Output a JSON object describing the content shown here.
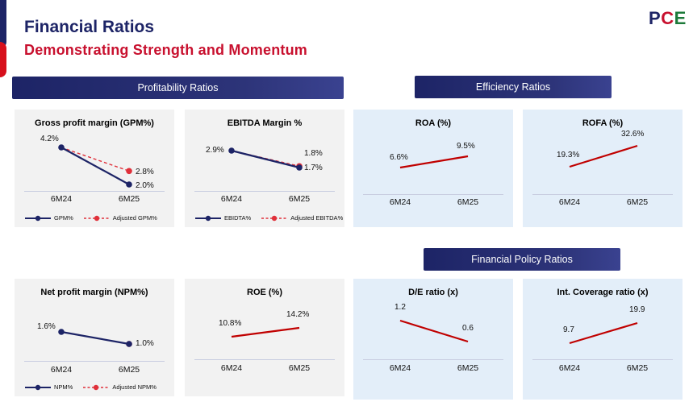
{
  "header": {
    "title": "Financial Ratios",
    "subtitle": "Demonstrating Strength and Momentum",
    "logo": {
      "p": "P",
      "c": "C",
      "e": "E"
    }
  },
  "sections": {
    "profitability": "Profitability Ratios",
    "efficiency": "Efficiency Ratios",
    "financial_policy": "Financial Policy Ratios"
  },
  "colors": {
    "navy": "#1d2466",
    "red": "#c8102e",
    "dashed_red": "#e0303a",
    "solid_red": "#c00000"
  },
  "chart_data": [
    {
      "id": "gpm",
      "type": "line",
      "title": "Gross profit margin (GPM%)",
      "categories": [
        "6M24",
        "6M25"
      ],
      "series": [
        {
          "name": "GPM%",
          "values": [
            4.2,
            2.0
          ],
          "labels": [
            "4.2%",
            "2.0%"
          ],
          "style": "navy-solid-marker"
        },
        {
          "name": "Adjusted GPM%",
          "values": [
            4.2,
            2.8
          ],
          "labels": [
            "",
            "2.8%"
          ],
          "style": "red-dashed-marker"
        }
      ]
    },
    {
      "id": "ebitda",
      "type": "line",
      "title": "EBITDA Margin %",
      "categories": [
        "6M24",
        "6M25"
      ],
      "series": [
        {
          "name": "EBIDTA%",
          "values": [
            2.9,
            1.7
          ],
          "labels": [
            "2.9%",
            "1.7%"
          ],
          "style": "navy-solid-marker"
        },
        {
          "name": "Adjusted EBITDA%",
          "values": [
            2.9,
            1.8
          ],
          "labels": [
            "",
            "1.8%"
          ],
          "style": "red-dashed-marker"
        }
      ]
    },
    {
      "id": "roa",
      "type": "line",
      "title": "ROA (%)",
      "categories": [
        "6M24",
        "6M25"
      ],
      "series": [
        {
          "name": "ROA",
          "values": [
            6.6,
            9.5
          ],
          "labels": [
            "6.6%",
            "9.5%"
          ],
          "style": "red-solid"
        }
      ]
    },
    {
      "id": "rofa",
      "type": "line",
      "title": "ROFA (%)",
      "categories": [
        "6M24",
        "6M25"
      ],
      "series": [
        {
          "name": "ROFA",
          "values": [
            19.3,
            32.6
          ],
          "labels": [
            "19.3%",
            "32.6%"
          ],
          "style": "red-solid"
        }
      ]
    },
    {
      "id": "npm",
      "type": "line",
      "title": "Net profit margin (NPM%)",
      "categories": [
        "6M24",
        "6M25"
      ],
      "series": [
        {
          "name": "NPM%",
          "values": [
            1.6,
            1.0
          ],
          "labels": [
            "1.6%",
            "1.0%"
          ],
          "style": "navy-solid-marker"
        },
        {
          "name": "Adjusted NPM%",
          "values": [
            1.6,
            1.0
          ],
          "labels": [
            "",
            ""
          ],
          "style": "red-dashed-marker"
        }
      ]
    },
    {
      "id": "roe",
      "type": "line",
      "title": "ROE (%)",
      "categories": [
        "6M24",
        "6M25"
      ],
      "series": [
        {
          "name": "ROE",
          "values": [
            10.8,
            14.2
          ],
          "labels": [
            "10.8%",
            "14.2%"
          ],
          "style": "red-solid"
        }
      ]
    },
    {
      "id": "de",
      "type": "line",
      "title": "D/E ratio (x)",
      "categories": [
        "6M24",
        "6M25"
      ],
      "series": [
        {
          "name": "D/E",
          "values": [
            1.2,
            0.6
          ],
          "labels": [
            "1.2",
            "0.6"
          ],
          "style": "red-solid"
        }
      ]
    },
    {
      "id": "icr",
      "type": "line",
      "title": "Int. Coverage ratio (x)",
      "categories": [
        "6M24",
        "6M25"
      ],
      "series": [
        {
          "name": "Interest Coverage",
          "values": [
            9.7,
            19.9
          ],
          "labels": [
            "9.7",
            "19.9"
          ],
          "style": "red-solid"
        }
      ]
    }
  ]
}
